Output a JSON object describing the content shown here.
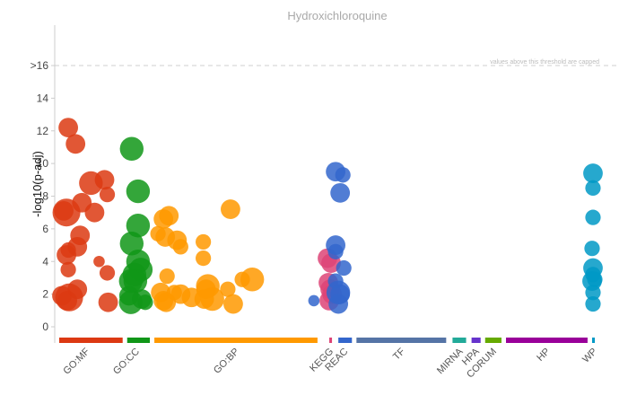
{
  "chart_data": {
    "type": "scatter",
    "title": "Hydroxichloroquine",
    "ylabel": "-log10(p-adj)",
    "xlabel": "",
    "ylim": [
      -1,
      18
    ],
    "y_ticks": [
      {
        "value": 0,
        "label": "0"
      },
      {
        "value": 2,
        "label": "2"
      },
      {
        "value": 4,
        "label": "4"
      },
      {
        "value": 6,
        "label": "6"
      },
      {
        "value": 8,
        "label": "8"
      },
      {
        "value": 10,
        "label": "10"
      },
      {
        "value": 12,
        "label": "12"
      },
      {
        "value": 14,
        "label": "14"
      },
      {
        "value": 16,
        "label": ">16"
      }
    ],
    "threshold": {
      "value": 16,
      "note": "values above this threshold are capped"
    },
    "grid": false,
    "legend": "none",
    "categories": [
      {
        "name": "GO:MF",
        "color": "#dc3912",
        "range": [
          0.5,
          7.5
        ],
        "label_at": 3.5
      },
      {
        "name": "GO:CC",
        "color": "#109618",
        "range": [
          8.0,
          10.5
        ],
        "label_at": 9.0
      },
      {
        "name": "GO:BP",
        "color": "#ff9900",
        "range": [
          11.0,
          29.0
        ],
        "label_at": 20.0
      },
      {
        "name": "KEGG",
        "color": "#dd4477",
        "range": [
          30.3,
          30.6
        ],
        "label_at": 30.4
      },
      {
        "name": "REAC",
        "color": "#3366cc",
        "range": [
          31.3,
          32.8
        ],
        "label_at": 32.0
      },
      {
        "name": "TF",
        "color": "#5574a6",
        "range": [
          33.3,
          43.2
        ],
        "label_at": 38.3
      },
      {
        "name": "MIRNA",
        "color": "#22aa99",
        "range": [
          43.9,
          45.4
        ],
        "label_at": 44.7
      },
      {
        "name": "HPA",
        "color": "#6633cc",
        "range": [
          46.0,
          47.0
        ],
        "label_at": 46.5
      },
      {
        "name": "CORUM",
        "color": "#66aa00",
        "range": [
          47.5,
          49.3
        ],
        "label_at": 48.4
      },
      {
        "name": "HP",
        "color": "#990099",
        "range": [
          49.8,
          58.8
        ],
        "label_at": 54.3
      },
      {
        "name": "WP",
        "color": "#0099c6",
        "range": [
          59.3,
          59.6
        ],
        "label_at": 59.5
      }
    ],
    "series": [
      {
        "source": "GO:MF",
        "color": "#dc3912",
        "points": [
          [
            1.5,
            12.2,
            3
          ],
          [
            2.3,
            11.2,
            3
          ],
          [
            1.0,
            7.1,
            3
          ],
          [
            1.3,
            7.0,
            5
          ],
          [
            3.0,
            7.6,
            3
          ],
          [
            4.0,
            8.8,
            4
          ],
          [
            5.5,
            9.0,
            3
          ],
          [
            5.8,
            8.1,
            2
          ],
          [
            4.4,
            7.0,
            3
          ],
          [
            2.8,
            5.6,
            3
          ],
          [
            1.5,
            4.7,
            2
          ],
          [
            2.5,
            4.9,
            3
          ],
          [
            1.3,
            4.4,
            3
          ],
          [
            1.5,
            3.5,
            2
          ],
          [
            4.9,
            4.0,
            1
          ],
          [
            5.8,
            3.3,
            2
          ],
          [
            2.5,
            2.3,
            3
          ],
          [
            0.8,
            1.9,
            3
          ],
          [
            1.6,
            1.8,
            5
          ],
          [
            1.4,
            1.6,
            3
          ],
          [
            5.9,
            1.5,
            3
          ]
        ]
      },
      {
        "source": "GO:CC",
        "color": "#109618",
        "points": [
          [
            8.5,
            10.9,
            4
          ],
          [
            9.2,
            8.3,
            4
          ],
          [
            9.2,
            6.2,
            4
          ],
          [
            8.5,
            5.1,
            4
          ],
          [
            9.2,
            4.0,
            4
          ],
          [
            8.8,
            3.2,
            4
          ],
          [
            9.5,
            3.5,
            4
          ],
          [
            8.4,
            2.8,
            4
          ],
          [
            8.9,
            2.8,
            4
          ],
          [
            8.2,
            1.9,
            3
          ],
          [
            8.4,
            1.5,
            4
          ],
          [
            9.6,
            1.7,
            3
          ],
          [
            10.0,
            1.5,
            2
          ]
        ]
      },
      {
        "source": "GO:BP",
        "color": "#ff9900",
        "points": [
          [
            11.4,
            5.7,
            2
          ],
          [
            12.0,
            6.6,
            3
          ],
          [
            12.6,
            6.8,
            3
          ],
          [
            12.2,
            5.5,
            3
          ],
          [
            13.5,
            5.3,
            3
          ],
          [
            13.9,
            4.9,
            2
          ],
          [
            16.4,
            5.2,
            2
          ],
          [
            16.4,
            4.2,
            2
          ],
          [
            12.4,
            3.1,
            2
          ],
          [
            11.7,
            2.1,
            3
          ],
          [
            12.0,
            1.6,
            3
          ],
          [
            12.3,
            1.5,
            3
          ],
          [
            13.2,
            2.1,
            2
          ],
          [
            13.9,
            2.0,
            3
          ],
          [
            15.1,
            1.8,
            3
          ],
          [
            16.5,
            1.7,
            3
          ],
          [
            16.9,
            2.5,
            4
          ],
          [
            16.7,
            2.3,
            3
          ],
          [
            17.4,
            1.7,
            4
          ],
          [
            19.4,
            7.2,
            3
          ],
          [
            19.1,
            2.3,
            2
          ],
          [
            19.7,
            1.4,
            3
          ],
          [
            20.7,
            2.9,
            2
          ],
          [
            21.8,
            2.9,
            4
          ]
        ]
      },
      {
        "source": "KEGG",
        "color": "#dd4477",
        "points": [
          [
            30.1,
            4.2,
            3
          ],
          [
            30.5,
            3.9,
            3
          ],
          [
            30.2,
            2.7,
            3
          ],
          [
            30.4,
            2.3,
            3
          ],
          [
            30.3,
            1.6,
            3
          ],
          [
            30.6,
            2.0,
            3
          ]
        ]
      },
      {
        "source": "REAC",
        "color": "#3366cc",
        "points": [
          [
            31.0,
            9.5,
            3
          ],
          [
            31.8,
            9.3,
            2
          ],
          [
            31.5,
            8.2,
            3
          ],
          [
            31.0,
            5.0,
            3
          ],
          [
            31.0,
            4.6,
            2
          ],
          [
            31.9,
            3.6,
            2
          ],
          [
            31.0,
            2.8,
            2
          ],
          [
            31.3,
            2.1,
            4
          ],
          [
            31.5,
            2.0,
            3
          ],
          [
            31.3,
            1.4,
            3
          ],
          [
            28.6,
            1.6,
            1
          ]
        ]
      },
      {
        "source": "WP",
        "color": "#0099c6",
        "points": [
          [
            59.4,
            9.4,
            3
          ],
          [
            59.4,
            8.5,
            2
          ],
          [
            59.4,
            6.7,
            2
          ],
          [
            59.3,
            4.8,
            2
          ],
          [
            59.4,
            3.6,
            3
          ],
          [
            59.4,
            3.2,
            2
          ],
          [
            59.3,
            2.8,
            3
          ],
          [
            59.6,
            2.9,
            2
          ],
          [
            59.4,
            2.1,
            2
          ],
          [
            59.4,
            1.4,
            2
          ]
        ]
      }
    ]
  }
}
